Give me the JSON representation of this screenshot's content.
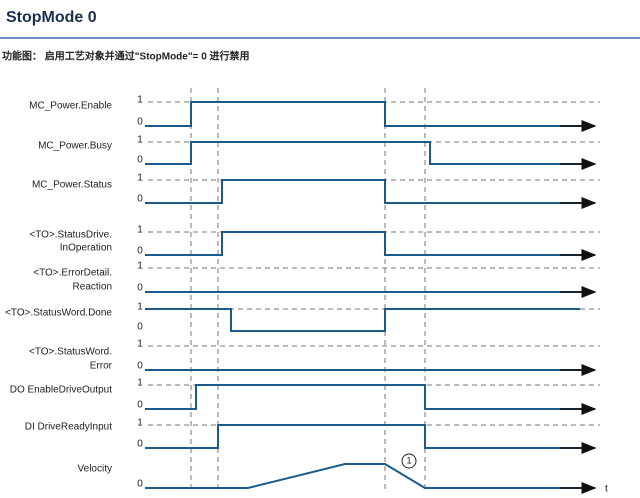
{
  "header": {
    "title": "StopMode 0",
    "subtitle": "功能图： 启用工艺对象并通过\"StopMode\"= 0 进行禁用"
  },
  "signals": [
    {
      "label": [
        "MC_Power.Enable"
      ],
      "high": "1",
      "low": "0"
    },
    {
      "label": [
        "MC_Power.Busy"
      ],
      "high": "1",
      "low": "0"
    },
    {
      "label": [
        "MC_Power.Status"
      ],
      "high": "1",
      "low": "0"
    },
    {
      "label": [
        "<TO>.StatusDrive.",
        "InOperation"
      ],
      "high": "1",
      "low": "0"
    },
    {
      "label": [
        "<TO>.ErrorDetail.",
        "Reaction"
      ],
      "high": "1",
      "low": "0"
    },
    {
      "label": [
        "<TO>.StatusWord.Done"
      ],
      "high": "1",
      "low": "0"
    },
    {
      "label": [
        "<TO>.StatusWord.",
        "Error"
      ],
      "high": "1",
      "low": "0"
    },
    {
      "label": [
        "DO EnableDriveOutput"
      ],
      "high": "1",
      "low": "0"
    },
    {
      "label": [
        "DI DriveReadyInput"
      ],
      "high": "1",
      "low": "0"
    },
    {
      "label": [
        "Velocity"
      ],
      "low": "0"
    }
  ],
  "marker": "1",
  "axis_label": "t"
}
